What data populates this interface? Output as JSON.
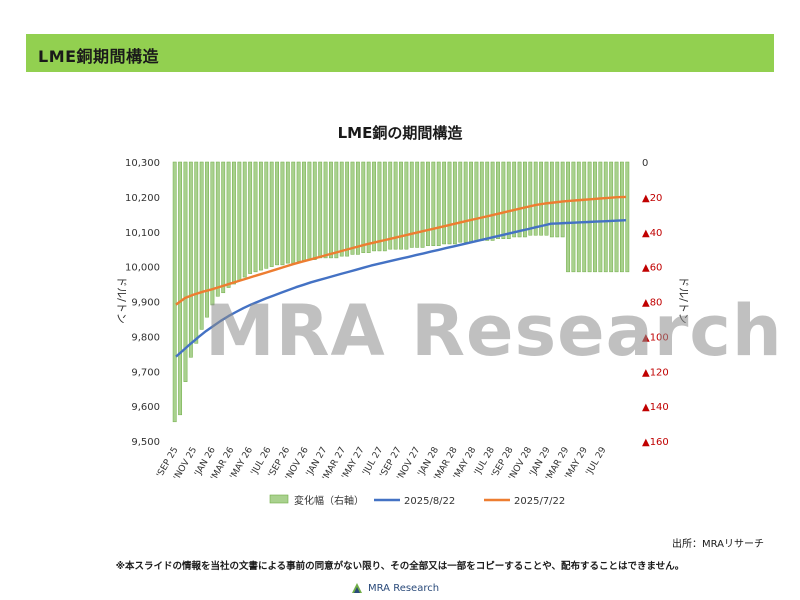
{
  "header": {
    "title": "LME銅期間構造"
  },
  "source_label": "出所：MRAリサーチ",
  "disclaimer": "※本スライドの情報を当社の文書による事前の同意がない限り、その全部又は一部をコピーすることや、配布することはできません。",
  "watermark": "MRA Research",
  "footer_logo_text": "MRA Research",
  "colors": {
    "header_band": "#92d050",
    "bar_fill": "#a9d18e",
    "bar_stroke": "#70ad47",
    "series_0822": "#4472c4",
    "series_0722": "#ed7d31",
    "right_axis_labels": "#c00000"
  },
  "chart_data": {
    "type": "bar+line",
    "title": "LME銅の期間構造",
    "ylabel_left": "ドル/トン",
    "ylabel_right": "ドル/トン",
    "ylim_left": [
      9500,
      10300
    ],
    "yticks_left": [
      "9,500",
      "9,600",
      "9,700",
      "9,800",
      "9,900",
      "10,000",
      "10,100",
      "10,200",
      "10,300"
    ],
    "ylim_right": [
      0,
      -160
    ],
    "yticks_right": [
      "0",
      "▲20",
      "▲40",
      "▲60",
      "▲80",
      "▲100",
      "▲120",
      "▲140",
      "▲160"
    ],
    "xtick_labels": [
      "'SEP 25",
      "'NOV 25",
      "'JAN 26",
      "'MAR 26",
      "'MAY 26",
      "'JUL 26",
      "'SEP 26",
      "'NOV 26",
      "'JAN 27",
      "'MAR 27",
      "'MAY 27",
      "'JUL 27",
      "'SEP 27",
      "'NOV 27",
      "'JAN 28",
      "'MAR 28",
      "'MAY 28",
      "'JUL 28",
      "'SEP 28",
      "'NOV 28",
      "'JAN 29",
      "'MAR 29",
      "'MAY 29",
      "'JUL 29"
    ],
    "legend_position": "bottom",
    "series": [
      {
        "name": "変化幅（右軸）",
        "kind": "bar",
        "axis": "right",
        "values": [
          -149,
          -145,
          -126,
          -112,
          -104,
          -96,
          -89,
          -82,
          -77,
          -75,
          -72,
          -70,
          -68,
          -66,
          -64,
          -63,
          -62,
          -61,
          -60,
          -59,
          -59,
          -58,
          -58,
          -57,
          -57,
          -56,
          -56,
          -55,
          -55,
          -55,
          -55,
          -54,
          -54,
          -53,
          -53,
          -52,
          -52,
          -51,
          -51,
          -51,
          -50,
          -50,
          -50,
          -50,
          -49,
          -49,
          -49,
          -48,
          -48,
          -48,
          -47,
          -47,
          -47,
          -46,
          -46,
          -46,
          -45,
          -45,
          -45,
          -45,
          -44,
          -44,
          -44,
          -43,
          -43,
          -43,
          -42,
          -42,
          -42,
          -42,
          -43,
          -43,
          -43,
          -63,
          -63,
          -63,
          -63,
          -63,
          -63,
          -63,
          -63,
          -63,
          -63,
          -63,
          -63
        ]
      },
      {
        "name": "2025/8/22",
        "kind": "line",
        "axis": "left",
        "color": "#4472c4",
        "x_start": 0,
        "x_step": 0.5,
        "values": [
          9742,
          9761,
          9780,
          9798,
          9815,
          9830,
          9845,
          9858,
          9870,
          9881,
          9891,
          9900,
          9909,
          9917,
          9925,
          9933,
          9941,
          9948,
          9955,
          9961,
          9967,
          9973,
          9979,
          9985,
          9991,
          9997,
          10003,
          10008,
          10013,
          10018,
          10023,
          10028,
          10033,
          10038,
          10043,
          10048,
          10053,
          10058,
          10063,
          10068,
          10073,
          10078,
          10083,
          10088,
          10093,
          10098,
          10103,
          10108,
          10113,
          10118,
          10123,
          10124,
          10125,
          10126,
          10127,
          10128,
          10129,
          10130,
          10131,
          10132,
          10133
        ]
      },
      {
        "name": "2025/7/22",
        "kind": "line",
        "axis": "left",
        "color": "#ed7d31",
        "x_start": 0,
        "x_step": 0.5,
        "values": [
          9891,
          9910,
          9920,
          9928,
          9935,
          9943,
          9951,
          9959,
          9967,
          9975,
          9983,
          9991,
          9999,
          10007,
          10014,
          10021,
          10028,
          10035,
          10042,
          10049,
          10056,
          10063,
          10069,
          10075,
          10081,
          10087,
          10093,
          10099,
          10105,
          10111,
          10117,
          10123,
          10129,
          10135,
          10141,
          10147,
          10153,
          10159,
          10165,
          10171,
          10177,
          10181,
          10184,
          10187,
          10189,
          10191,
          10193,
          10195,
          10197,
          10199,
          10200
        ]
      }
    ]
  }
}
